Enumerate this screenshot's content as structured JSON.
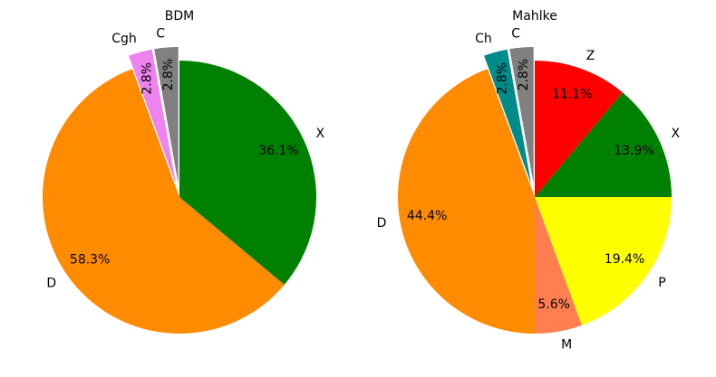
{
  "chart_data": [
    {
      "type": "pie",
      "title": "BDM",
      "start_angle_deg": 90,
      "direction": "counterclockwise",
      "slices": [
        {
          "label": "C",
          "pct_label": "2.8%",
          "value": 2.8,
          "color": "#808080",
          "exploded": true,
          "pct_rotated": true
        },
        {
          "label": "Cgh",
          "pct_label": "2.8%",
          "value": 2.8,
          "color": "#ee82ee",
          "exploded": true,
          "pct_rotated": true
        },
        {
          "label": "D",
          "pct_label": "58.3%",
          "value": 58.3,
          "color": "#ff8c00",
          "exploded": false,
          "pct_rotated": false
        },
        {
          "label": "X",
          "pct_label": "36.1%",
          "value": 36.1,
          "color": "#008000",
          "exploded": false,
          "pct_rotated": false
        }
      ]
    },
    {
      "type": "pie",
      "title": "Mahlke",
      "start_angle_deg": 90,
      "direction": "counterclockwise",
      "slices": [
        {
          "label": "C",
          "pct_label": "2.8%",
          "value": 2.8,
          "color": "#808080",
          "exploded": true,
          "pct_rotated": true
        },
        {
          "label": "Ch",
          "pct_label": "2.8%",
          "value": 2.8,
          "color": "#008b8b",
          "exploded": true,
          "pct_rotated": true
        },
        {
          "label": "D",
          "pct_label": "44.4%",
          "value": 44.4,
          "color": "#ff8c00",
          "exploded": false,
          "pct_rotated": false
        },
        {
          "label": "M",
          "pct_label": "5.6%",
          "value": 5.6,
          "color": "#ff7f50",
          "exploded": false,
          "pct_rotated": false
        },
        {
          "label": "P",
          "pct_label": "19.4%",
          "value": 19.4,
          "color": "#ffff00",
          "exploded": false,
          "pct_rotated": false
        },
        {
          "label": "X",
          "pct_label": "13.9%",
          "value": 13.9,
          "color": "#008000",
          "exploded": false,
          "pct_rotated": false
        },
        {
          "label": "Z",
          "pct_label": "11.1%",
          "value": 11.1,
          "color": "#ff0000",
          "exploded": false,
          "pct_rotated": false
        }
      ]
    }
  ]
}
